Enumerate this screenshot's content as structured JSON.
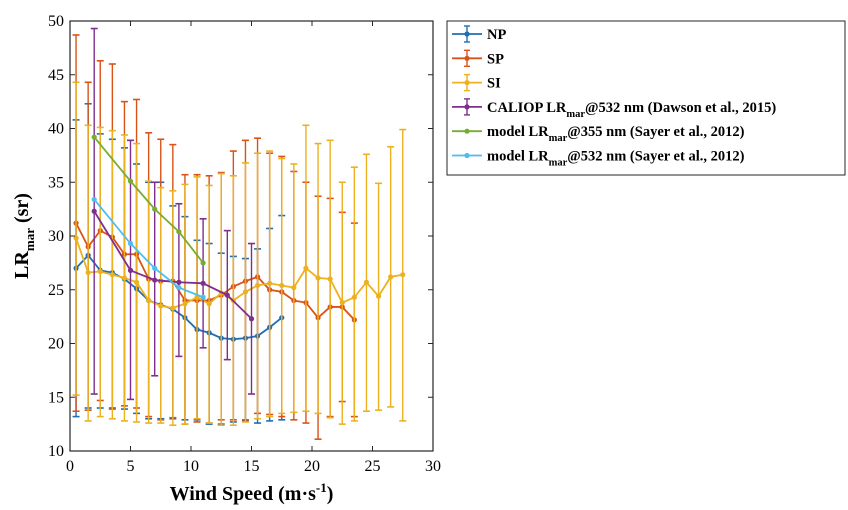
{
  "chart_data": {
    "type": "line",
    "xlabel": "Wind Speed (m·s",
    "xlabel_sup": "-1",
    "xlabel_end": ")",
    "ylabel_main": "LR",
    "ylabel_sub": "mar",
    "ylabel_end": " (sr)",
    "xlim": [
      0,
      30
    ],
    "ylim": [
      10,
      50
    ],
    "xticks": [
      "0",
      "5",
      "10",
      "15",
      "20",
      "25",
      "30"
    ],
    "yticks": [
      "10",
      "15",
      "20",
      "25",
      "30",
      "35",
      "40",
      "45",
      "50"
    ],
    "grid": false,
    "legend_position": "outside-top-right",
    "series": [
      {
        "name": "NP",
        "legend_parts": [
          "NP"
        ],
        "color": "#1f6fb2",
        "errorbars": true,
        "x": [
          0.5,
          1.5,
          2.5,
          3.5,
          4.5,
          5.5,
          6.5,
          7.5,
          8.5,
          9.5,
          10.5,
          11.5,
          12.5,
          13.5,
          14.5,
          15.5,
          16.5,
          17.5
        ],
        "y": [
          27.0,
          28.2,
          26.8,
          26.6,
          26.0,
          25.1,
          24.0,
          23.6,
          23.2,
          22.4,
          21.3,
          21.0,
          20.5,
          20.4,
          20.5,
          20.7,
          21.5,
          22.4
        ],
        "upper": [
          40.8,
          42.3,
          39.5,
          39.0,
          38.2,
          36.7,
          35.0,
          35.0,
          32.8,
          31.8,
          29.6,
          29.3,
          28.4,
          28.1,
          27.9,
          28.8,
          30.7,
          31.9
        ],
        "lower": [
          13.2,
          14.0,
          14.0,
          14.0,
          13.9,
          13.5,
          13.0,
          13.0,
          13.0,
          12.9,
          12.9,
          12.5,
          12.5,
          12.7,
          12.8,
          12.6,
          12.8,
          12.9
        ]
      },
      {
        "name": "SP",
        "legend_parts": [
          "SP"
        ],
        "color": "#d95319",
        "errorbars": true,
        "x": [
          0.5,
          1.5,
          2.5,
          3.5,
          4.5,
          5.5,
          6.5,
          7.5,
          8.5,
          9.5,
          10.5,
          11.5,
          12.5,
          13.5,
          14.5,
          15.5,
          16.5,
          17.5,
          18.5,
          19.5,
          20.5,
          21.5,
          22.5,
          23.5
        ],
        "y": [
          31.2,
          29.0,
          30.5,
          29.9,
          28.3,
          28.3,
          26.0,
          25.8,
          25.8,
          24.0,
          24.0,
          24.0,
          24.5,
          25.3,
          25.8,
          26.2,
          25.0,
          24.8,
          24.0,
          23.8,
          22.4,
          23.4,
          23.4,
          22.2
        ],
        "upper": [
          48.7,
          44.3,
          46.3,
          46.0,
          42.5,
          42.7,
          39.6,
          39.0,
          38.5,
          35.7,
          35.7,
          35.6,
          35.9,
          37.9,
          38.9,
          39.1,
          37.7,
          37.4,
          36.0,
          35.0,
          33.7,
          33.5,
          32.2,
          31.2
        ],
        "lower": [
          13.7,
          13.8,
          14.7,
          13.9,
          14.2,
          14.0,
          13.2,
          12.9,
          13.1,
          12.5,
          12.7,
          12.6,
          12.9,
          12.9,
          12.9,
          13.5,
          13.4,
          13.2,
          12.9,
          12.6,
          11.1,
          13.2,
          14.6,
          13.2
        ]
      },
      {
        "name": "SI",
        "legend_parts": [
          "SI"
        ],
        "color": "#edb120",
        "errorbars": true,
        "x": [
          0.5,
          1.5,
          2.5,
          3.5,
          4.5,
          5.5,
          6.5,
          7.5,
          8.5,
          9.5,
          10.5,
          11.5,
          12.5,
          13.5,
          14.5,
          15.5,
          16.5,
          17.5,
          18.5,
          19.5,
          20.5,
          21.5,
          22.5,
          23.5,
          24.5,
          25.5,
          26.5,
          27.5
        ],
        "y": [
          29.8,
          26.6,
          26.7,
          26.4,
          26.1,
          25.7,
          24.0,
          23.5,
          23.3,
          23.7,
          24.3,
          23.7,
          24.7,
          24.0,
          24.8,
          25.4,
          25.6,
          25.4,
          25.2,
          27.0,
          26.1,
          26.0,
          23.8,
          24.3,
          25.7,
          24.4,
          26.2,
          26.4
        ],
        "upper": [
          44.3,
          40.3,
          40.1,
          39.8,
          39.4,
          38.6,
          35.1,
          34.5,
          34.2,
          34.8,
          35.5,
          34.7,
          35.8,
          35.6,
          36.8,
          37.7,
          37.9,
          37.2,
          36.7,
          40.3,
          38.6,
          38.9,
          35.0,
          36.4,
          37.6,
          34.9,
          38.3,
          39.9
        ],
        "lower": [
          15.2,
          12.8,
          13.2,
          13.0,
          12.8,
          12.7,
          12.6,
          12.6,
          12.4,
          12.5,
          13.0,
          12.6,
          12.4,
          12.4,
          12.7,
          13.0,
          13.2,
          13.5,
          13.6,
          13.7,
          13.5,
          13.1,
          12.5,
          12.8,
          13.7,
          13.8,
          14.1,
          12.8
        ]
      },
      {
        "name": "CALIOP LR@532 nm (Dawson et al., 2015)",
        "legend_parts": [
          "CALIOP LR",
          "mar",
          "@532 nm (Dawson et al., 2015)"
        ],
        "color": "#7e2f8e",
        "errorbars": true,
        "x": [
          2,
          5,
          7,
          9,
          11,
          13,
          15
        ],
        "y": [
          32.3,
          26.8,
          25.9,
          25.7,
          25.6,
          24.5,
          22.3
        ],
        "upper": [
          49.3,
          38.9,
          35.0,
          33.0,
          31.6,
          30.5,
          29.3
        ],
        "lower": [
          15.3,
          14.8,
          17.0,
          18.8,
          19.6,
          18.5,
          15.3
        ]
      },
      {
        "name": "model LR@355 nm (Sayer et al., 2012)",
        "legend_parts": [
          "model LR",
          "mar",
          "@355 nm (Sayer et al., 2012)"
        ],
        "color": "#77ac30",
        "errorbars": false,
        "x": [
          2,
          5,
          7,
          9,
          11
        ],
        "y": [
          39.2,
          35.1,
          32.5,
          30.4,
          27.5
        ]
      },
      {
        "name": "model LR@532 nm (Sayer et al., 2012)",
        "legend_parts": [
          "model LR",
          "mar",
          "@532 nm (Sayer et al., 2012)"
        ],
        "color": "#4dbeee",
        "errorbars": false,
        "x": [
          2,
          5,
          7,
          9,
          11
        ],
        "y": [
          33.4,
          29.3,
          27.0,
          25.2,
          24.3
        ]
      }
    ]
  }
}
